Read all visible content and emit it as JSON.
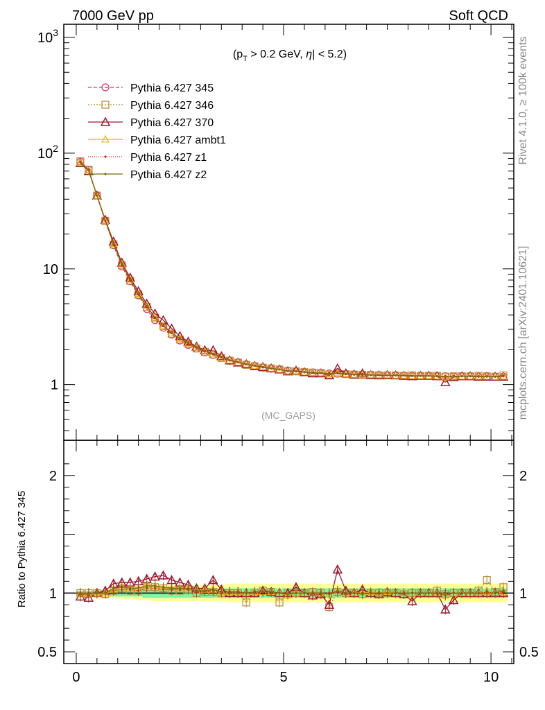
{
  "header": {
    "left": "7000 GeV pp",
    "right": "Soft QCD"
  },
  "cut_label": "(p_T > 0.2 GeV, |η| < 5.2)",
  "cut": {
    "open": "(p",
    "sub": "T",
    "mid": " > 0.2 GeV, ",
    "eta": "η",
    "close": "| < 5.2)"
  },
  "analysis_label": "(MC_GAPS)",
  "side_labels": {
    "top": "Rivet 4.1.0, ≥ 100k events",
    "bottom": "mcplots.cern.ch [arXiv:2401.10621]"
  },
  "ratio_ylabel": "Ratio to Pythia 6.427 345",
  "colors": {
    "band_inner": "#7CF5A5",
    "band_outer": "#FFFF99",
    "axis": "#000000"
  },
  "chart_data": [
    {
      "type": "line",
      "title": "",
      "xlabel": "",
      "ylabel": "",
      "yscale": "log",
      "xlim": [
        -0.3,
        10.55
      ],
      "ylim": [
        0.33,
        1300
      ],
      "y_ticks": [
        {
          "value": 1,
          "label": "1"
        },
        {
          "value": 10,
          "label": "10"
        },
        {
          "value": 100,
          "label": "10^2"
        },
        {
          "value": 1000,
          "label": "10^3"
        }
      ],
      "legend_position": "top-left",
      "x": [
        0.1,
        0.3,
        0.5,
        0.7,
        0.9,
        1.1,
        1.3,
        1.5,
        1.7,
        1.9,
        2.1,
        2.3,
        2.5,
        2.7,
        2.9,
        3.1,
        3.3,
        3.5,
        3.7,
        3.9,
        4.1,
        4.3,
        4.5,
        4.7,
        4.9,
        5.1,
        5.3,
        5.5,
        5.7,
        5.9,
        6.1,
        6.3,
        6.5,
        6.7,
        6.9,
        7.1,
        7.3,
        7.5,
        7.7,
        7.9,
        8.1,
        8.3,
        8.5,
        8.7,
        8.9,
        9.1,
        9.3,
        9.5,
        9.7,
        9.9,
        10.1,
        10.3
      ],
      "series": [
        {
          "name": "Pythia 6.427 345",
          "color": "#D6355E",
          "marker": "circle",
          "dash": "5,3",
          "values": [
            84,
            72,
            43,
            26,
            16,
            10.5,
            7.8,
            5.9,
            4.5,
            3.6,
            3.1,
            2.7,
            2.4,
            2.2,
            2.05,
            1.9,
            1.8,
            1.7,
            1.6,
            1.55,
            1.5,
            1.45,
            1.4,
            1.37,
            1.35,
            1.32,
            1.3,
            1.28,
            1.27,
            1.26,
            1.25,
            1.24,
            1.23,
            1.22,
            1.22,
            1.21,
            1.21,
            1.2,
            1.2,
            1.2,
            1.19,
            1.19,
            1.19,
            1.18,
            1.18,
            1.18,
            1.18,
            1.18,
            1.17,
            1.17,
            1.17,
            1.17
          ]
        },
        {
          "name": "Pythia 6.427 346",
          "color": "#B98A3A",
          "marker": "square",
          "dash": "2,2",
          "values": [
            85,
            72,
            43,
            26,
            16.2,
            10.8,
            7.9,
            6.0,
            4.7,
            3.8,
            3.2,
            2.75,
            2.45,
            2.25,
            2.05,
            1.92,
            1.82,
            1.7,
            1.61,
            1.55,
            1.48,
            1.44,
            1.4,
            1.38,
            1.35,
            1.31,
            1.3,
            1.28,
            1.27,
            1.26,
            1.22,
            1.25,
            1.23,
            1.22,
            1.21,
            1.21,
            1.2,
            1.2,
            1.2,
            1.19,
            1.2,
            1.19,
            1.19,
            1.19,
            1.17,
            1.18,
            1.18,
            1.18,
            1.19,
            1.18,
            1.17,
            1.2
          ]
        },
        {
          "name": "Pythia 6.427 370",
          "color": "#9B1B30",
          "marker": "triangle",
          "dash": "",
          "values": [
            82,
            70,
            43,
            26.5,
            17.2,
            11.3,
            8.4,
            6.4,
            5.0,
            4.1,
            3.6,
            3.05,
            2.62,
            2.35,
            2.13,
            1.98,
            1.98,
            1.76,
            1.62,
            1.55,
            1.5,
            1.45,
            1.42,
            1.38,
            1.35,
            1.3,
            1.32,
            1.28,
            1.25,
            1.25,
            1.2,
            1.38,
            1.25,
            1.22,
            1.25,
            1.21,
            1.2,
            1.21,
            1.2,
            1.19,
            1.18,
            1.19,
            1.19,
            1.18,
            1.05,
            1.16,
            1.18,
            1.18,
            1.17,
            1.17,
            1.17,
            1.17
          ]
        },
        {
          "name": "Pythia 6.427 ambt1",
          "color": "#F0A81A",
          "marker": "triangle-open",
          "dash": "",
          "values": [
            83,
            71,
            42.5,
            26,
            16.5,
            11,
            8.1,
            6.1,
            4.8,
            3.8,
            3.2,
            2.8,
            2.5,
            2.28,
            2.1,
            1.95,
            1.85,
            1.72,
            1.62,
            1.56,
            1.5,
            1.46,
            1.42,
            1.38,
            1.35,
            1.3,
            1.3,
            1.28,
            1.27,
            1.26,
            1.24,
            1.26,
            1.23,
            1.22,
            1.22,
            1.22,
            1.21,
            1.21,
            1.2,
            1.2,
            1.19,
            1.19,
            1.19,
            1.18,
            1.16,
            1.18,
            1.18,
            1.18,
            1.18,
            1.18,
            1.17,
            1.18
          ]
        },
        {
          "name": "Pythia 6.427 z1",
          "color": "#E8150E",
          "marker": "dot",
          "dash": "1,2",
          "values": [
            84,
            72,
            43,
            26,
            16.3,
            10.8,
            8.0,
            6.0,
            4.7,
            3.75,
            3.2,
            2.78,
            2.48,
            2.26,
            2.08,
            1.93,
            1.84,
            1.72,
            1.62,
            1.56,
            1.5,
            1.46,
            1.41,
            1.38,
            1.35,
            1.31,
            1.3,
            1.28,
            1.27,
            1.26,
            1.25,
            1.25,
            1.23,
            1.22,
            1.22,
            1.21,
            1.21,
            1.2,
            1.2,
            1.2,
            1.19,
            1.19,
            1.19,
            1.18,
            1.18,
            1.18,
            1.18,
            1.18,
            1.17,
            1.18,
            1.17,
            1.18
          ]
        },
        {
          "name": "Pythia 6.427 z2",
          "color": "#7A6A10",
          "marker": "dot",
          "dash": "",
          "values": [
            83,
            71,
            43,
            26.2,
            16.6,
            11,
            8.1,
            6.1,
            4.75,
            3.8,
            3.25,
            2.8,
            2.5,
            2.28,
            2.1,
            1.94,
            1.85,
            1.72,
            1.62,
            1.56,
            1.5,
            1.46,
            1.42,
            1.38,
            1.35,
            1.31,
            1.3,
            1.28,
            1.27,
            1.26,
            1.24,
            1.26,
            1.23,
            1.22,
            1.21,
            1.21,
            1.21,
            1.2,
            1.2,
            1.2,
            1.19,
            1.19,
            1.19,
            1.18,
            1.16,
            1.18,
            1.18,
            1.18,
            1.18,
            1.17,
            1.17,
            1.2
          ]
        }
      ]
    },
    {
      "type": "line",
      "title": "",
      "xlabel": "",
      "ylabel": "Ratio to Pythia 6.427 345",
      "xlim": [
        -0.3,
        10.55
      ],
      "ylim": [
        0.4,
        2.3
      ],
      "x_ticks": [
        {
          "value": 0,
          "label": "0"
        },
        {
          "value": 5,
          "label": "5"
        },
        {
          "value": 10,
          "label": "10"
        }
      ],
      "y_ticks": [
        {
          "value": 0.5,
          "label": "0.5"
        },
        {
          "value": 1,
          "label": "1"
        },
        {
          "value": 2,
          "label": "2"
        }
      ],
      "reference": 1,
      "band_inner_halfwidth": [
        0.02,
        0.02,
        0.02,
        0.02,
        0.03,
        0.03,
        0.03,
        0.03,
        0.04,
        0.04,
        0.04,
        0.04,
        0.04,
        0.04,
        0.04,
        0.04,
        0.04,
        0.04,
        0.04,
        0.04,
        0.04,
        0.04,
        0.04,
        0.04,
        0.04,
        0.04,
        0.04,
        0.04,
        0.04,
        0.04,
        0.04,
        0.04,
        0.04,
        0.04,
        0.04,
        0.04,
        0.04,
        0.04,
        0.04,
        0.04,
        0.04,
        0.04,
        0.04,
        0.04,
        0.04,
        0.04,
        0.04,
        0.04,
        0.04,
        0.04,
        0.04,
        0.04
      ],
      "band_outer_halfwidth": [
        0.02,
        0.02,
        0.03,
        0.03,
        0.04,
        0.05,
        0.05,
        0.06,
        0.06,
        0.07,
        0.07,
        0.07,
        0.07,
        0.07,
        0.07,
        0.07,
        0.07,
        0.07,
        0.08,
        0.08,
        0.08,
        0.08,
        0.08,
        0.08,
        0.08,
        0.08,
        0.08,
        0.08,
        0.08,
        0.08,
        0.08,
        0.08,
        0.08,
        0.08,
        0.08,
        0.08,
        0.08,
        0.08,
        0.08,
        0.08,
        0.08,
        0.08,
        0.08,
        0.08,
        0.08,
        0.08,
        0.08,
        0.08,
        0.08,
        0.08,
        0.08,
        0.08
      ],
      "series": [
        {
          "name": "Pythia 6.427 346",
          "values": [
            1.0,
            1.0,
            1.0,
            0.99,
            1.02,
            1.04,
            1.02,
            1.02,
            1.05,
            1.05,
            1.04,
            1.02,
            1.02,
            1.03,
            1.0,
            1.01,
            1.01,
            1.0,
            1.0,
            1.0,
            0.92,
            1.0,
            1.02,
            1.01,
            0.92,
            1.0,
            1.0,
            1.0,
            1.01,
            1.0,
            0.88,
            1.01,
            1.0,
            1.0,
            0.99,
            1.0,
            1.0,
            1.0,
            1.0,
            0.99,
            1.0,
            1.0,
            1.0,
            1.02,
            0.99,
            1.0,
            1.0,
            1.0,
            1.02,
            1.11,
            1.01,
            1.05
          ]
        },
        {
          "name": "Pythia 6.427 370",
          "values": [
            0.97,
            0.96,
            1.0,
            1.02,
            1.08,
            1.09,
            1.09,
            1.1,
            1.12,
            1.14,
            1.15,
            1.11,
            1.09,
            1.07,
            1.04,
            1.04,
            1.11,
            1.03,
            1.0,
            1.0,
            1.0,
            1.0,
            1.02,
            1.01,
            1.0,
            1.0,
            1.05,
            1.0,
            0.98,
            0.99,
            0.9,
            1.2,
            1.02,
            1.0,
            1.03,
            1.0,
            0.99,
            1.01,
            1.0,
            0.99,
            0.93,
            1.0,
            1.0,
            1.0,
            0.86,
            0.94,
            1.0,
            1.0,
            1.0,
            1.0,
            1.0,
            1.0
          ]
        },
        {
          "name": "Pythia 6.427 ambt1",
          "values": [
            0.99,
            0.99,
            0.99,
            0.99,
            1.03,
            1.05,
            1.04,
            1.04,
            1.07,
            1.06,
            1.04,
            1.04,
            1.04,
            1.04,
            1.02,
            1.03,
            1.03,
            1.01,
            1.01,
            1.01,
            1.0,
            1.01,
            1.01,
            1.01,
            1.0,
            0.98,
            1.0,
            1.0,
            1.0,
            1.0,
            0.99,
            1.02,
            1.0,
            1.0,
            1.0,
            1.01,
            1.0,
            1.01,
            1.0,
            1.0,
            1.0,
            1.0,
            1.0,
            1.0,
            0.98,
            1.0,
            1.0,
            1.0,
            1.0,
            1.01,
            1.0,
            1.01
          ]
        },
        {
          "name": "Pythia 6.427 z1",
          "values": [
            1.0,
            1.0,
            1.0,
            1.0,
            1.02,
            1.03,
            1.03,
            1.02,
            1.04,
            1.04,
            1.03,
            1.03,
            1.03,
            1.03,
            1.01,
            1.02,
            1.02,
            1.01,
            1.01,
            1.01,
            1.0,
            1.01,
            1.01,
            1.01,
            1.0,
            0.99,
            1.0,
            1.0,
            1.0,
            1.0,
            1.0,
            1.01,
            1.0,
            1.0,
            1.0,
            1.0,
            1.0,
            1.0,
            1.0,
            1.0,
            1.0,
            1.0,
            1.0,
            1.0,
            1.0,
            1.0,
            1.0,
            1.0,
            1.0,
            1.01,
            1.0,
            1.01
          ]
        },
        {
          "name": "Pythia 6.427 z2",
          "values": [
            0.99,
            0.99,
            1.0,
            1.0,
            1.04,
            1.05,
            1.04,
            1.04,
            1.06,
            1.06,
            1.05,
            1.04,
            1.04,
            1.04,
            1.02,
            1.02,
            1.03,
            1.01,
            1.01,
            1.01,
            1.0,
            1.01,
            1.01,
            1.01,
            1.0,
            0.99,
            1.0,
            1.0,
            1.0,
            1.0,
            0.99,
            1.02,
            1.0,
            1.0,
            0.99,
            1.0,
            1.0,
            1.0,
            1.0,
            1.0,
            1.0,
            1.0,
            1.0,
            1.0,
            0.98,
            1.0,
            1.0,
            1.0,
            1.0,
            1.0,
            1.0,
            1.02
          ]
        }
      ]
    }
  ]
}
